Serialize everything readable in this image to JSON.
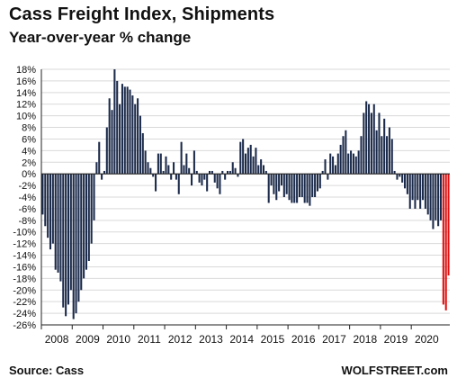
{
  "header": {
    "title": "Cass Freight Index, Shipments",
    "subtitle": "Year-over-year % change"
  },
  "footer": {
    "source": "Source: Cass",
    "brand": "WOLFSTREET.com"
  },
  "colors": {
    "bar": "#1b2a4a",
    "highlight": "#e01010",
    "grid": "#d9d9d9",
    "axis": "#222222"
  },
  "chart_data": {
    "type": "bar",
    "title": "Cass Freight Index, Shipments",
    "subtitle": "Year-over-year % change",
    "xlabel": "",
    "ylabel": "",
    "ylim": [
      -26,
      18
    ],
    "y_ticks": [
      18,
      16,
      14,
      12,
      10,
      8,
      6,
      4,
      2,
      0,
      -2,
      -4,
      -6,
      -8,
      -10,
      -12,
      -14,
      -16,
      -18,
      -20,
      -22,
      -24,
      -26
    ],
    "y_tick_labels": [
      "18%",
      "16%",
      "14%",
      "12%",
      "10%",
      "8%",
      "6%",
      "4%",
      "2%",
      "0%",
      "-2%",
      "-4%",
      "-6%",
      "-8%",
      "-10%",
      "-12%",
      "-14%",
      "-16%",
      "-18%",
      "-20%",
      "-22%",
      "-24%",
      "-26%"
    ],
    "x_tick_labels": [
      "2008",
      "2009",
      "2010",
      "2011",
      "2012",
      "2013",
      "2014",
      "2015",
      "2016",
      "2017",
      "2018",
      "2019",
      "2020"
    ],
    "grid": true,
    "frequency": "monthly",
    "start": "2008-01",
    "highlight_last": 3,
    "values": [
      -7.0,
      -9.0,
      -11.0,
      -13.0,
      -12.0,
      -16.5,
      -17.0,
      -18.5,
      -23.0,
      -24.5,
      -22.5,
      -20.0,
      -25.0,
      -24.0,
      -22.0,
      -20.0,
      -18.0,
      -16.5,
      -15.0,
      -12.0,
      -8.0,
      2.0,
      5.5,
      -1.0,
      0.5,
      8.0,
      13.0,
      11.0,
      18.0,
      16.0,
      12.0,
      15.5,
      15.0,
      15.0,
      14.5,
      13.5,
      12.0,
      13.0,
      10.0,
      7.0,
      4.0,
      2.0,
      1.0,
      -0.5,
      -3.0,
      3.5,
      3.5,
      0.5,
      3.0,
      1.5,
      -1.0,
      2.0,
      -1.0,
      -3.5,
      5.5,
      1.5,
      3.5,
      1.0,
      -2.0,
      4.0,
      0.5,
      -1.5,
      -2.0,
      -1.0,
      -3.0,
      0.5,
      0.5,
      -1.5,
      -2.5,
      -3.5,
      0.5,
      -1.0,
      0.5,
      0.5,
      2.0,
      1.0,
      -0.5,
      5.5,
      6.0,
      3.5,
      4.5,
      5.0,
      3.0,
      4.5,
      1.5,
      2.5,
      1.5,
      0.5,
      -5.0,
      -2.0,
      -3.5,
      -4.5,
      -3.0,
      -2.0,
      -4.0,
      -3.5,
      -4.5,
      -5.0,
      -5.0,
      -5.0,
      -4.0,
      -4.0,
      -5.0,
      -5.0,
      -5.5,
      -4.0,
      -4.0,
      -3.0,
      -2.5,
      0.5,
      2.5,
      -1.0,
      3.5,
      3.0,
      1.5,
      3.5,
      5.0,
      6.5,
      7.5,
      3.5,
      4.0,
      3.5,
      3.0,
      4.0,
      6.5,
      10.5,
      12.5,
      12.0,
      10.5,
      12.0,
      7.5,
      10.5,
      6.5,
      9.5,
      6.5,
      8.0,
      6.0,
      0.5,
      -1.0,
      -0.5,
      -1.5,
      -2.5,
      -3.5,
      -6.0,
      -4.5,
      -6.0,
      -4.5,
      -6.0,
      -4.5,
      -6.0,
      -7.0,
      -8.0,
      -9.5,
      -8.0,
      -9.0,
      -8.0,
      -22.5,
      -23.5,
      -17.5
    ]
  }
}
